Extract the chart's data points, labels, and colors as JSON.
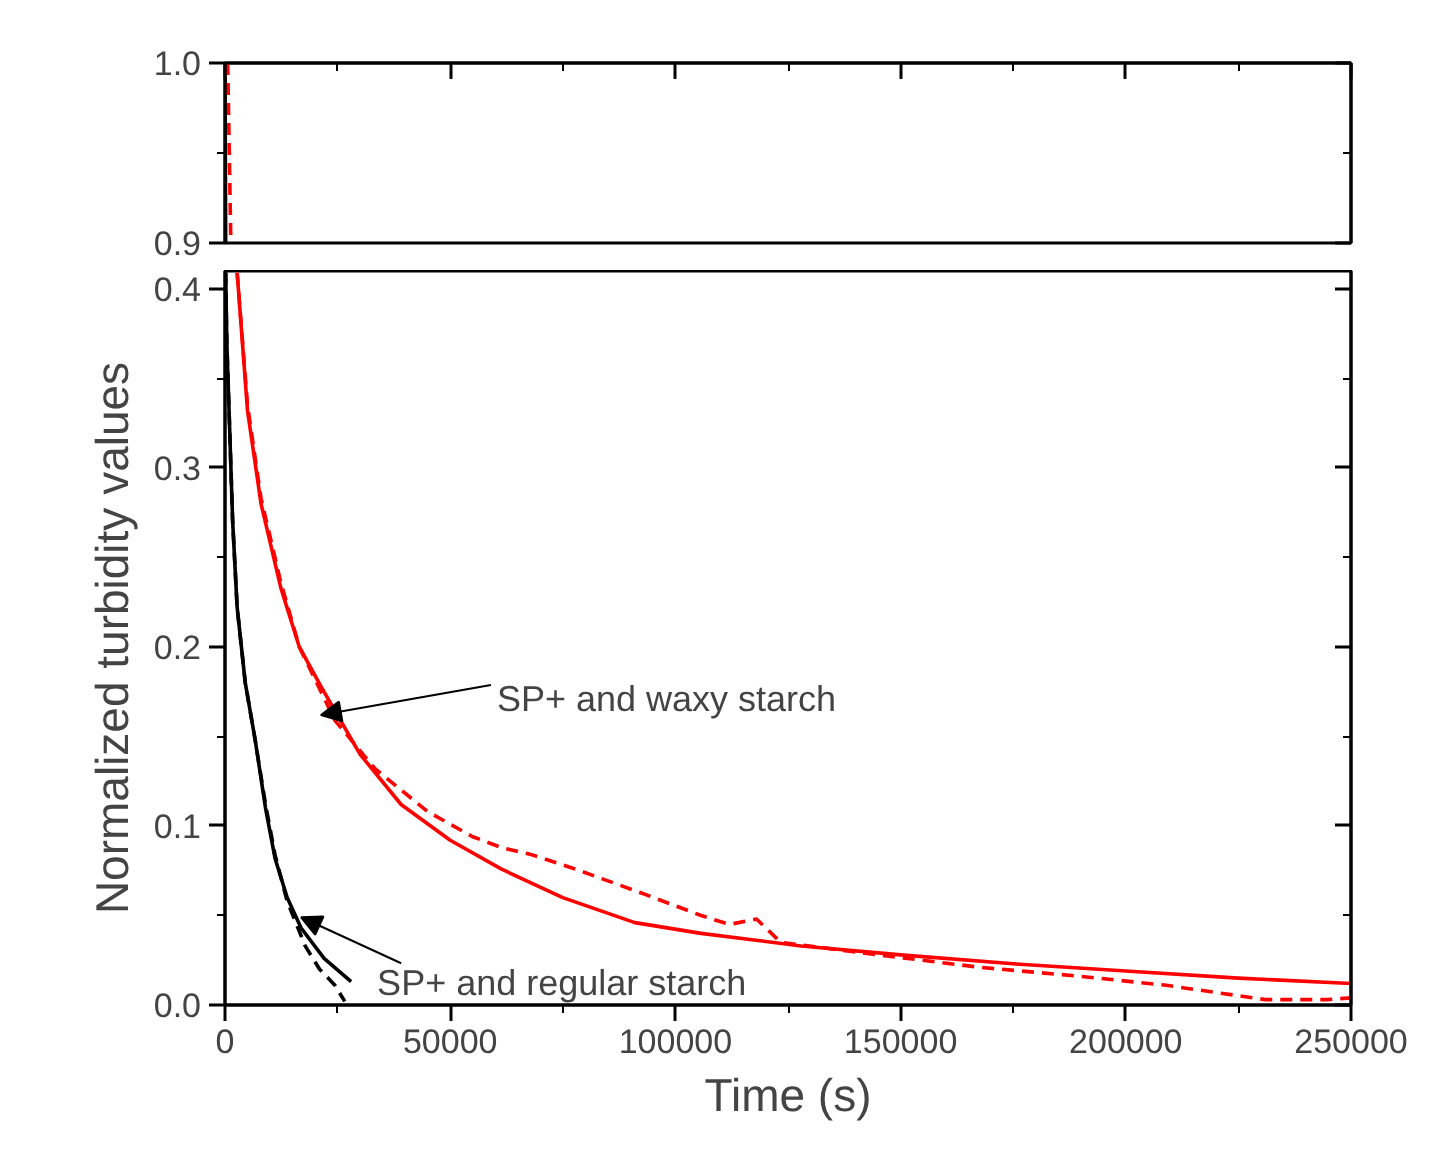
{
  "chart_data": [
    {
      "type": "line",
      "xlim": [
        0,
        250000
      ],
      "ylim": [
        0.9,
        1.0
      ],
      "xticks": [
        0,
        50000,
        100000,
        150000,
        200000,
        250000
      ],
      "yticks": [
        {
          "value": 0.9,
          "label": "0.9"
        },
        {
          "value": 1.0,
          "label": "1.0"
        }
      ],
      "tick_labels": "y",
      "series": [
        {
          "color": "#000000",
          "line_style": "solid",
          "x": [
            0,
            150
          ],
          "values": [
            1.0,
            0.9
          ]
        },
        {
          "color": "#ff0000",
          "line_style": "dashed",
          "x": [
            600,
            1300
          ],
          "values": [
            1.0,
            0.9
          ]
        }
      ]
    },
    {
      "type": "line",
      "xlabel": "Time (s)",
      "ylabel": "Normalized turbidity values",
      "xlim": [
        0,
        250000
      ],
      "ylim": [
        0,
        0.41
      ],
      "xticks": [
        0,
        50000,
        100000,
        150000,
        200000,
        250000
      ],
      "yticks": [
        {
          "value": 0,
          "label": "0.0"
        },
        0.1,
        0.2,
        0.3,
        0.4
      ],
      "series": [
        {
          "color": "#ff0000",
          "line_style": "solid",
          "x": [
            2700,
            5000,
            8000,
            12400,
            16500,
            21300,
            30000,
            39100,
            50000,
            61300,
            75000,
            91000,
            105700,
            127900,
            150000,
            175000,
            200000,
            225000,
            250000
          ],
          "values": [
            0.409,
            0.332,
            0.28,
            0.233,
            0.2,
            0.178,
            0.14,
            0.112,
            0.092,
            0.076,
            0.06,
            0.046,
            0.04,
            0.033,
            0.028,
            0.023,
            0.019,
            0.015,
            0.012
          ]
        },
        {
          "color": "#ff0000",
          "line_style": "dashed",
          "x": [
            2700,
            5000,
            8000,
            12400,
            16500,
            24400,
            33300,
            45000,
            55000,
            61300,
            68000,
            77700,
            92000,
            105700,
            112000,
            118000,
            123400,
            145000,
            167800,
            190000,
            209000,
            231000,
            244700,
            250000
          ],
          "values": [
            0.409,
            0.335,
            0.283,
            0.236,
            0.2,
            0.159,
            0.132,
            0.108,
            0.094,
            0.088,
            0.084,
            0.076,
            0.063,
            0.05,
            0.045,
            0.048,
            0.035,
            0.028,
            0.021,
            0.016,
            0.011,
            0.003,
            0.003,
            0.004
          ]
        },
        {
          "color": "#000000",
          "line_style": "solid",
          "x": [
            150,
            400,
            900,
            1700,
            2700,
            4500,
            6700,
            9000,
            11100,
            13800,
            16900,
            22000,
            28000
          ],
          "values": [
            0.409,
            0.37,
            0.332,
            0.27,
            0.222,
            0.18,
            0.148,
            0.11,
            0.082,
            0.06,
            0.043,
            0.026,
            0.013
          ]
        },
        {
          "color": "#000000",
          "line_style": "dashed",
          "x": [
            150,
            400,
            900,
            1700,
            2700,
            4500,
            6700,
            9000,
            11100,
            13800,
            17800,
            21000,
            24400,
            26600
          ],
          "values": [
            0.409,
            0.37,
            0.332,
            0.27,
            0.222,
            0.18,
            0.148,
            0.112,
            0.084,
            0.058,
            0.033,
            0.02,
            0.011,
            0.002
          ]
        }
      ],
      "annotations": [
        {
          "text": "SP+ and waxy starch",
          "x": 21300,
          "y": 0.162
        },
        {
          "text": "SP+ and regular starch",
          "x": 16900,
          "y": 0.049
        }
      ]
    }
  ]
}
